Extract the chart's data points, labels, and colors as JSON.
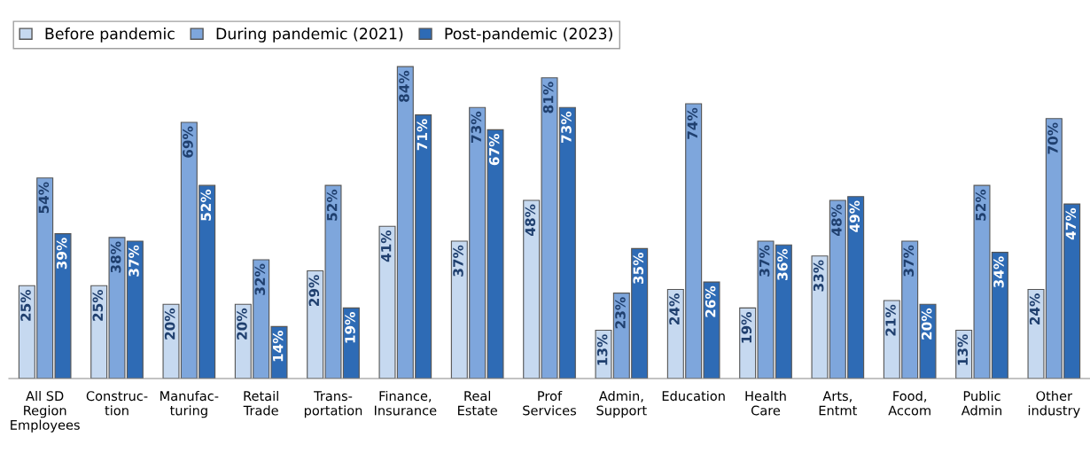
{
  "chart_data": {
    "type": "bar",
    "categories": [
      "All SD\nRegion\nEmployees",
      "Construc-\ntion",
      "Manufac-\nturing",
      "Retail\nTrade",
      "Trans-\nportation",
      "Finance,\nInsurance",
      "Real\nEstate",
      "Prof\nServices",
      "Admin,\nSupport",
      "Education",
      "Health\nCare",
      "Arts,\nEntmt",
      "Food,\nAccom",
      "Public\nAdmin",
      "Other\nindustry"
    ],
    "series": [
      {
        "name": "Before pandemic",
        "color": "#c6d9f0",
        "values": [
          25,
          25,
          20,
          20,
          29,
          41,
          37,
          48,
          13,
          24,
          19,
          33,
          21,
          13,
          24
        ],
        "value_labels": [
          "25%",
          "25%",
          "20%",
          "20%",
          "29%",
          "41%",
          "37%",
          "48%",
          "13%",
          "24%",
          "19%",
          "33%",
          "21%",
          "13%",
          "24%"
        ]
      },
      {
        "name": "During pandemic (2021)",
        "color": "#7ea6dc",
        "values": [
          54,
          38,
          69,
          32,
          52,
          84,
          73,
          81,
          23,
          74,
          37,
          48,
          37,
          52,
          70
        ],
        "value_labels": [
          "54%",
          "38%",
          "69%",
          "32%",
          "52%",
          "84%",
          "73%",
          "81%",
          "23%",
          "74%",
          "37%",
          "48%",
          "37%",
          "52%",
          "70%"
        ]
      },
      {
        "name": "Post-pandemic (2023)",
        "color": "#2e6bb5",
        "values": [
          39,
          37,
          52,
          14,
          19,
          71,
          67,
          73,
          35,
          26,
          36,
          49,
          20,
          34,
          47
        ],
        "value_labels": [
          "39%",
          "37%",
          "52%",
          "14%",
          "19%",
          "71%",
          "67%",
          "73%",
          "35%",
          "26%",
          "36%",
          "49%",
          "20%",
          "34%",
          "47%"
        ]
      }
    ],
    "legend": "top left",
    "grid": false
  }
}
